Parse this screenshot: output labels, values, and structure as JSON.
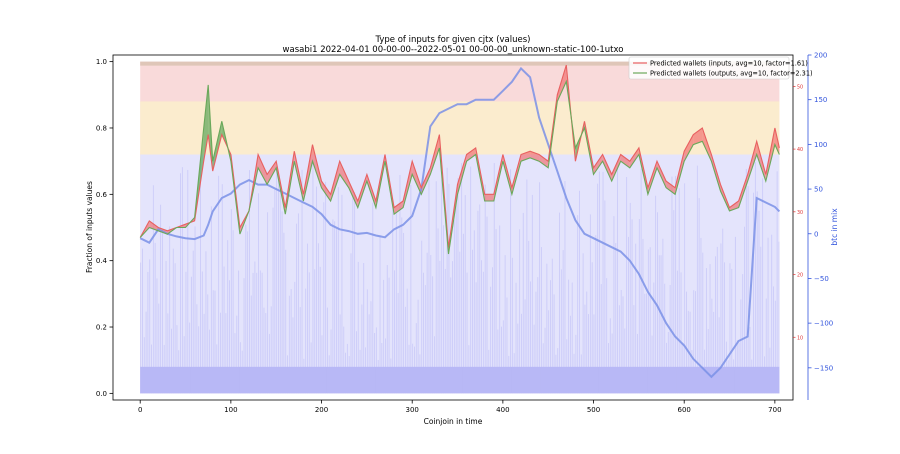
{
  "chart_data": {
    "type": "line",
    "title": "Type of inputs for given cjtx (values)",
    "subtitle": "wasabi1 2022-04-01 00-00-00--2022-05-01 00-00-00_unknown-static-100-1utxo",
    "xlabel": "Coinjoin in time",
    "ylabel": "Fraction of inputs values",
    "y2label": "btc in mix",
    "xlim": [
      -30,
      720
    ],
    "ylim": [
      -0.02,
      1.02
    ],
    "y2lim": [
      -186,
      200
    ],
    "y3lim": [
      0,
      55
    ],
    "x_ticks": [
      0,
      100,
      200,
      300,
      400,
      500,
      600,
      700
    ],
    "x_tick_labels": [
      "0",
      "100",
      "200",
      "300",
      "400",
      "500",
      "600",
      "700"
    ],
    "y_ticks": [
      0.0,
      0.2,
      0.4,
      0.6,
      0.8,
      1.0
    ],
    "y_tick_labels": [
      "0.0",
      "0.2",
      "0.4",
      "0.6",
      "0.8",
      "1.0"
    ],
    "y2_ticks": [
      -150,
      -100,
      -50,
      0,
      50,
      100,
      150,
      200
    ],
    "y2_tick_labels": [
      "−150",
      "−100",
      "−50",
      "0",
      "50",
      "100",
      "150",
      "200"
    ],
    "y3_ticks": [
      10,
      20,
      30,
      40,
      50
    ],
    "y3_tick_labels": [
      "10",
      "20",
      "30",
      "40",
      "50"
    ],
    "legend_position": "top-right",
    "grid": false,
    "colors": {
      "inputs_line": "#e86060",
      "outputs_line": "#6aa85a",
      "inputs_fill": "#f06a6a",
      "outputs_fill": "#4fa04f",
      "mix_line": "#7a90e6",
      "fresh_band": "#b8b8f6",
      "remix_band": "#e4e4fc",
      "yellow_band": "#fbeecb",
      "pink_band": "#f9dada",
      "tan_band": "#dfc6b8",
      "y2_axis": "#3355dd",
      "y3_axis": "#dd3333"
    },
    "x": [
      0,
      10,
      20,
      30,
      40,
      50,
      60,
      70,
      75,
      80,
      90,
      100,
      110,
      120,
      130,
      140,
      150,
      160,
      170,
      180,
      190,
      200,
      210,
      220,
      230,
      240,
      250,
      260,
      270,
      280,
      290,
      300,
      310,
      320,
      330,
      340,
      350,
      360,
      370,
      380,
      390,
      400,
      410,
      420,
      430,
      440,
      450,
      460,
      470,
      480,
      490,
      500,
      510,
      520,
      530,
      540,
      550,
      560,
      570,
      580,
      590,
      600,
      610,
      620,
      630,
      640,
      650,
      660,
      670,
      680,
      690,
      700,
      705
    ],
    "series": [
      {
        "name": "Predicted wallets (inputs, avg=10, factor=1.61)",
        "values": [
          0.47,
          0.52,
          0.5,
          0.49,
          0.5,
          0.51,
          0.52,
          0.7,
          0.78,
          0.67,
          0.78,
          0.72,
          0.5,
          0.55,
          0.72,
          0.66,
          0.7,
          0.56,
          0.73,
          0.6,
          0.75,
          0.64,
          0.6,
          0.7,
          0.64,
          0.58,
          0.66,
          0.58,
          0.72,
          0.56,
          0.58,
          0.7,
          0.62,
          0.68,
          0.78,
          0.44,
          0.63,
          0.72,
          0.74,
          0.6,
          0.6,
          0.72,
          0.62,
          0.72,
          0.73,
          0.72,
          0.7,
          0.9,
          0.99,
          0.7,
          0.82,
          0.68,
          0.72,
          0.66,
          0.72,
          0.7,
          0.74,
          0.62,
          0.7,
          0.64,
          0.62,
          0.73,
          0.78,
          0.8,
          0.72,
          0.63,
          0.56,
          0.58,
          0.66,
          0.76,
          0.66,
          0.8,
          0.74
        ]
      },
      {
        "name": "Predicted wallets (outputs, avg=10, factor=2.31)",
        "values": [
          0.47,
          0.5,
          0.49,
          0.48,
          0.5,
          0.5,
          0.53,
          0.8,
          0.93,
          0.7,
          0.82,
          0.7,
          0.48,
          0.55,
          0.68,
          0.63,
          0.68,
          0.54,
          0.7,
          0.58,
          0.7,
          0.62,
          0.58,
          0.66,
          0.62,
          0.56,
          0.64,
          0.56,
          0.7,
          0.54,
          0.56,
          0.66,
          0.6,
          0.66,
          0.74,
          0.42,
          0.6,
          0.7,
          0.72,
          0.58,
          0.58,
          0.7,
          0.6,
          0.7,
          0.71,
          0.7,
          0.68,
          0.88,
          0.94,
          0.74,
          0.8,
          0.66,
          0.7,
          0.64,
          0.7,
          0.68,
          0.72,
          0.6,
          0.68,
          0.62,
          0.6,
          0.7,
          0.75,
          0.76,
          0.7,
          0.61,
          0.55,
          0.56,
          0.64,
          0.72,
          0.64,
          0.75,
          0.72
        ]
      },
      {
        "name": "btc in mix",
        "axis": "y2",
        "values": [
          -5,
          -10,
          5,
          0,
          -3,
          -5,
          -6,
          -2,
          10,
          25,
          40,
          45,
          55,
          60,
          55,
          55,
          50,
          45,
          40,
          35,
          30,
          22,
          10,
          5,
          3,
          0,
          1,
          -2,
          -4,
          5,
          10,
          20,
          50,
          120,
          135,
          140,
          145,
          145,
          150,
          150,
          150,
          160,
          170,
          185,
          175,
          130,
          100,
          70,
          40,
          15,
          0,
          -5,
          -10,
          -15,
          -20,
          -30,
          -45,
          -65,
          -80,
          -100,
          -115,
          -125,
          -140,
          -150,
          -160,
          -150,
          -135,
          -120,
          -115,
          40,
          35,
          30,
          25
        ]
      }
    ]
  }
}
